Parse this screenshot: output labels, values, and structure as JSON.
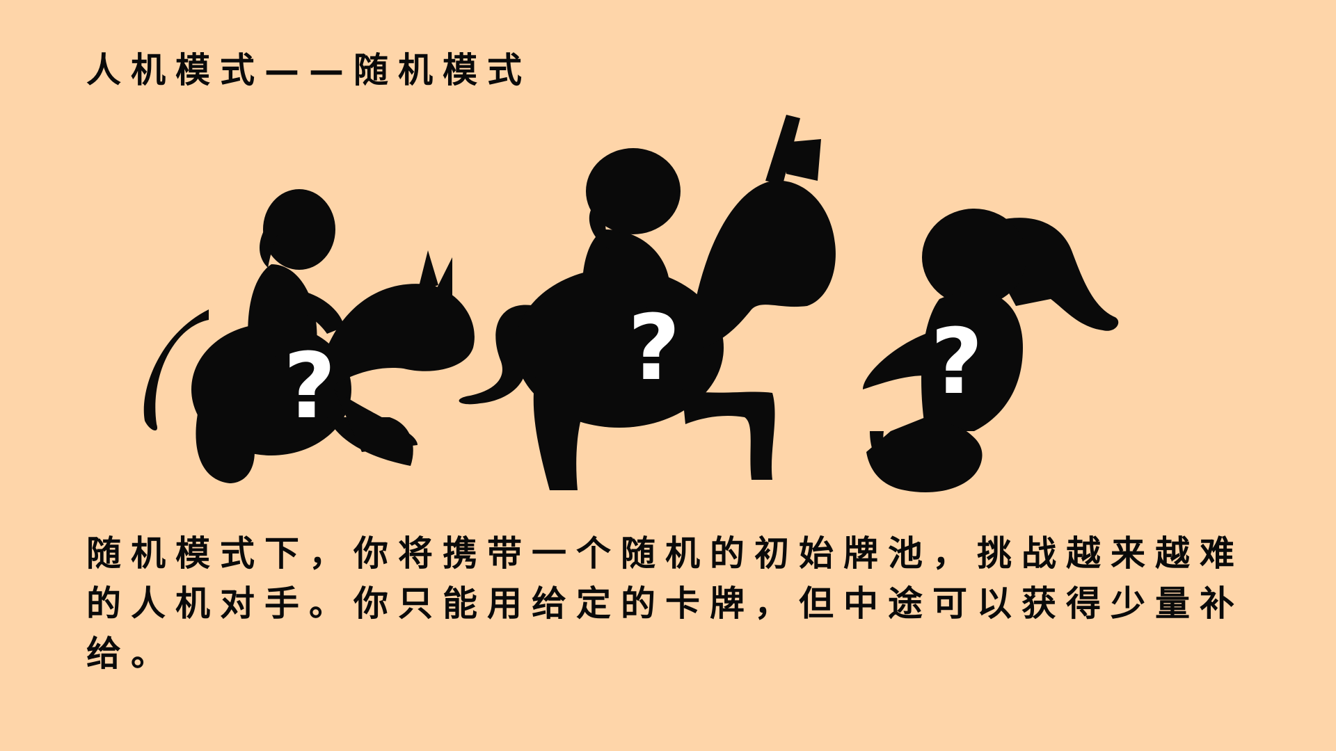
{
  "slide": {
    "title": "人机模式——随机模式",
    "description_line1": "随机模式下，你将携带一个随机的初始牌池，挑战越来越难",
    "description_line2": "的人机对手。你只能用给定的卡牌，但中途可以获得少量补",
    "description_line3": "给。"
  },
  "figures": [
    {
      "name": "rider-on-pony-silhouette",
      "mark": "?"
    },
    {
      "name": "rider-on-unicorn-silhouette",
      "mark": "?"
    },
    {
      "name": "rider-on-seahorse-silhouette",
      "mark": "?"
    }
  ],
  "colors": {
    "background": "#fed5a9",
    "silhouette": "#0a0a0a",
    "question_mark": "#ffffff"
  }
}
